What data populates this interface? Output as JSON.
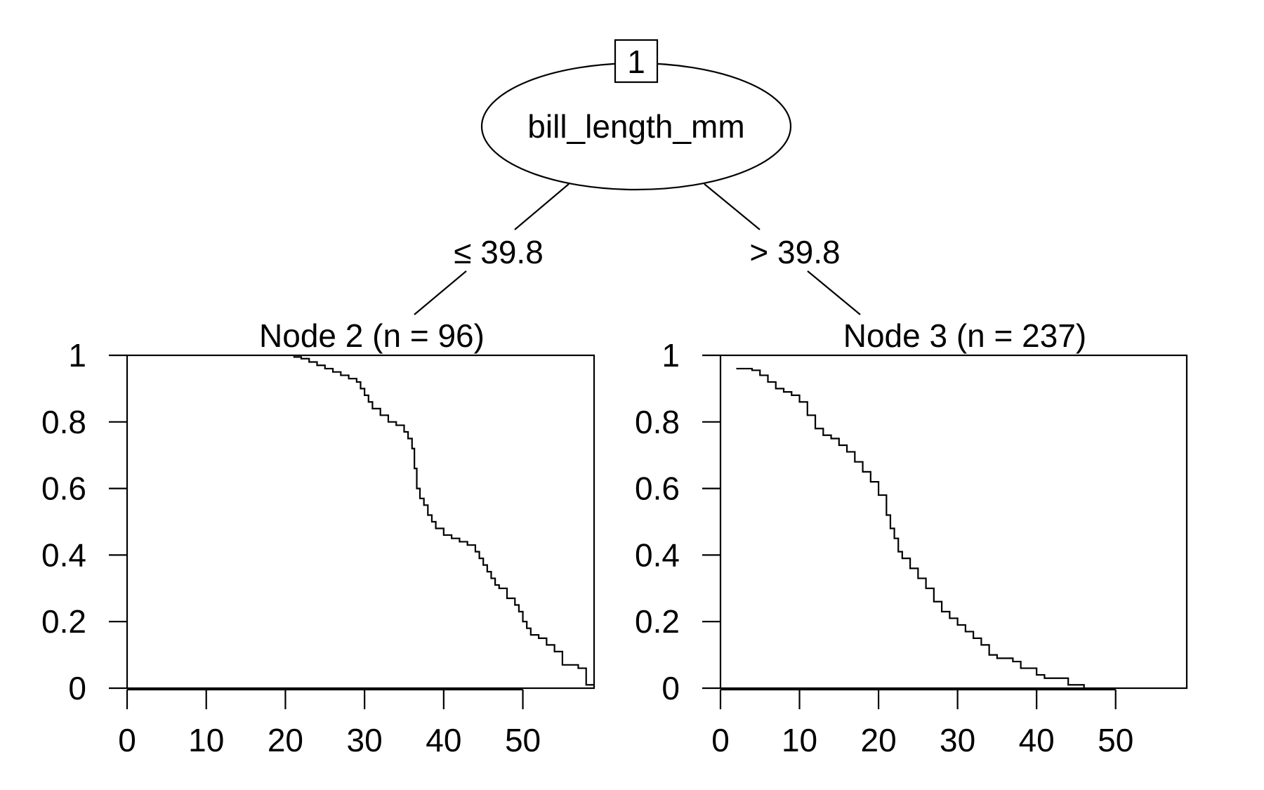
{
  "root": {
    "id": "1",
    "variable": "bill_length_mm"
  },
  "edges": [
    {
      "label": "≤ 39.8"
    },
    {
      "label": "> 39.8"
    }
  ],
  "chart_data": [
    {
      "type": "line",
      "title": "Node 2 (n = 96)",
      "xlim": [
        0,
        59
      ],
      "ylim": [
        0,
        1
      ],
      "x_ticks": [
        0,
        10,
        20,
        30,
        40,
        50
      ],
      "x_tick_labels": [
        "0",
        "10",
        "20",
        "30",
        "40",
        "50"
      ],
      "y_ticks": [
        0,
        0.2,
        0.4,
        0.6,
        0.8,
        1
      ],
      "y_tick_labels": [
        "0",
        "0.2",
        "0.4",
        "0.6",
        "0.8",
        "1"
      ],
      "series": [
        {
          "step": true,
          "x": [
            21,
            22,
            23,
            24,
            25,
            26,
            27,
            28,
            29,
            29.5,
            30,
            30.5,
            31,
            32,
            33,
            34,
            35,
            35.5,
            36,
            36.3,
            36.6,
            37,
            37.5,
            38,
            38.5,
            39,
            40,
            41,
            42,
            43,
            44,
            44.5,
            45,
            45.5,
            46,
            46.5,
            47,
            48,
            49,
            49.5,
            50,
            50.5,
            51,
            52,
            53,
            54,
            55,
            57,
            58,
            59
          ],
          "y": [
            0.995,
            0.99,
            0.98,
            0.97,
            0.96,
            0.95,
            0.94,
            0.93,
            0.92,
            0.9,
            0.88,
            0.86,
            0.84,
            0.82,
            0.8,
            0.79,
            0.77,
            0.75,
            0.72,
            0.66,
            0.6,
            0.57,
            0.55,
            0.52,
            0.5,
            0.48,
            0.46,
            0.45,
            0.44,
            0.43,
            0.41,
            0.39,
            0.37,
            0.35,
            0.33,
            0.31,
            0.3,
            0.27,
            0.25,
            0.23,
            0.2,
            0.18,
            0.16,
            0.15,
            0.13,
            0.11,
            0.07,
            0.06,
            0.01,
            0.01
          ]
        }
      ]
    },
    {
      "type": "line",
      "title": "Node 3 (n = 237)",
      "xlim": [
        0,
        59
      ],
      "ylim": [
        0,
        1
      ],
      "x_ticks": [
        0,
        10,
        20,
        30,
        40,
        50
      ],
      "x_tick_labels": [
        "0",
        "10",
        "20",
        "30",
        "40",
        "50"
      ],
      "y_ticks": [
        0,
        0.2,
        0.4,
        0.6,
        0.8,
        1
      ],
      "y_tick_labels": [
        "0",
        "0.2",
        "0.4",
        "0.6",
        "0.8",
        "1"
      ],
      "series": [
        {
          "step": true,
          "x": [
            2,
            4,
            5,
            6,
            7,
            8,
            9,
            10,
            11,
            12,
            13,
            14,
            15,
            16,
            17,
            18,
            19,
            20,
            21,
            21.5,
            22,
            22.5,
            23,
            24,
            25,
            26,
            27,
            28,
            29,
            30,
            31,
            32,
            33,
            34,
            35,
            37,
            38,
            40,
            41,
            42,
            44,
            46
          ],
          "y": [
            0.96,
            0.955,
            0.94,
            0.92,
            0.9,
            0.89,
            0.88,
            0.86,
            0.82,
            0.78,
            0.76,
            0.75,
            0.73,
            0.71,
            0.68,
            0.65,
            0.62,
            0.58,
            0.52,
            0.48,
            0.45,
            0.41,
            0.39,
            0.36,
            0.33,
            0.3,
            0.26,
            0.23,
            0.21,
            0.19,
            0.17,
            0.15,
            0.13,
            0.1,
            0.09,
            0.08,
            0.06,
            0.04,
            0.03,
            0.03,
            0.01,
            0
          ]
        }
      ]
    }
  ]
}
